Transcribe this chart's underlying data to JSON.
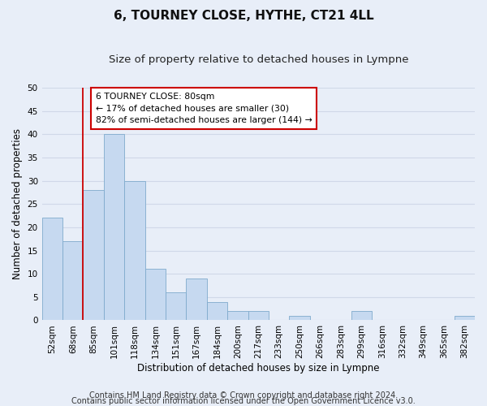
{
  "title": "6, TOURNEY CLOSE, HYTHE, CT21 4LL",
  "subtitle": "Size of property relative to detached houses in Lympne",
  "xlabel": "Distribution of detached houses by size in Lympne",
  "ylabel": "Number of detached properties",
  "bin_labels": [
    "52sqm",
    "68sqm",
    "85sqm",
    "101sqm",
    "118sqm",
    "134sqm",
    "151sqm",
    "167sqm",
    "184sqm",
    "200sqm",
    "217sqm",
    "233sqm",
    "250sqm",
    "266sqm",
    "283sqm",
    "299sqm",
    "316sqm",
    "332sqm",
    "349sqm",
    "365sqm",
    "382sqm"
  ],
  "bar_values": [
    22,
    17,
    28,
    40,
    30,
    11,
    6,
    9,
    4,
    2,
    2,
    0,
    1,
    0,
    0,
    2,
    0,
    0,
    0,
    0,
    1
  ],
  "bar_color": "#c6d9f0",
  "bar_edge_color": "#7faacc",
  "vline_color": "#cc0000",
  "annotation_line1": "6 TOURNEY CLOSE: 80sqm",
  "annotation_line2": "← 17% of detached houses are smaller (30)",
  "annotation_line3": "82% of semi-detached houses are larger (144) →",
  "annotation_box_color": "#ffffff",
  "annotation_box_edge": "#cc0000",
  "ylim": [
    0,
    50
  ],
  "yticks": [
    0,
    5,
    10,
    15,
    20,
    25,
    30,
    35,
    40,
    45,
    50
  ],
  "footer_line1": "Contains HM Land Registry data © Crown copyright and database right 2024.",
  "footer_line2": "Contains public sector information licensed under the Open Government Licence v3.0.",
  "bg_color": "#e8eef8",
  "grid_color": "#d0d8e8",
  "title_fontsize": 11,
  "subtitle_fontsize": 9.5,
  "axis_label_fontsize": 8.5,
  "tick_fontsize": 7.5,
  "footer_fontsize": 7
}
